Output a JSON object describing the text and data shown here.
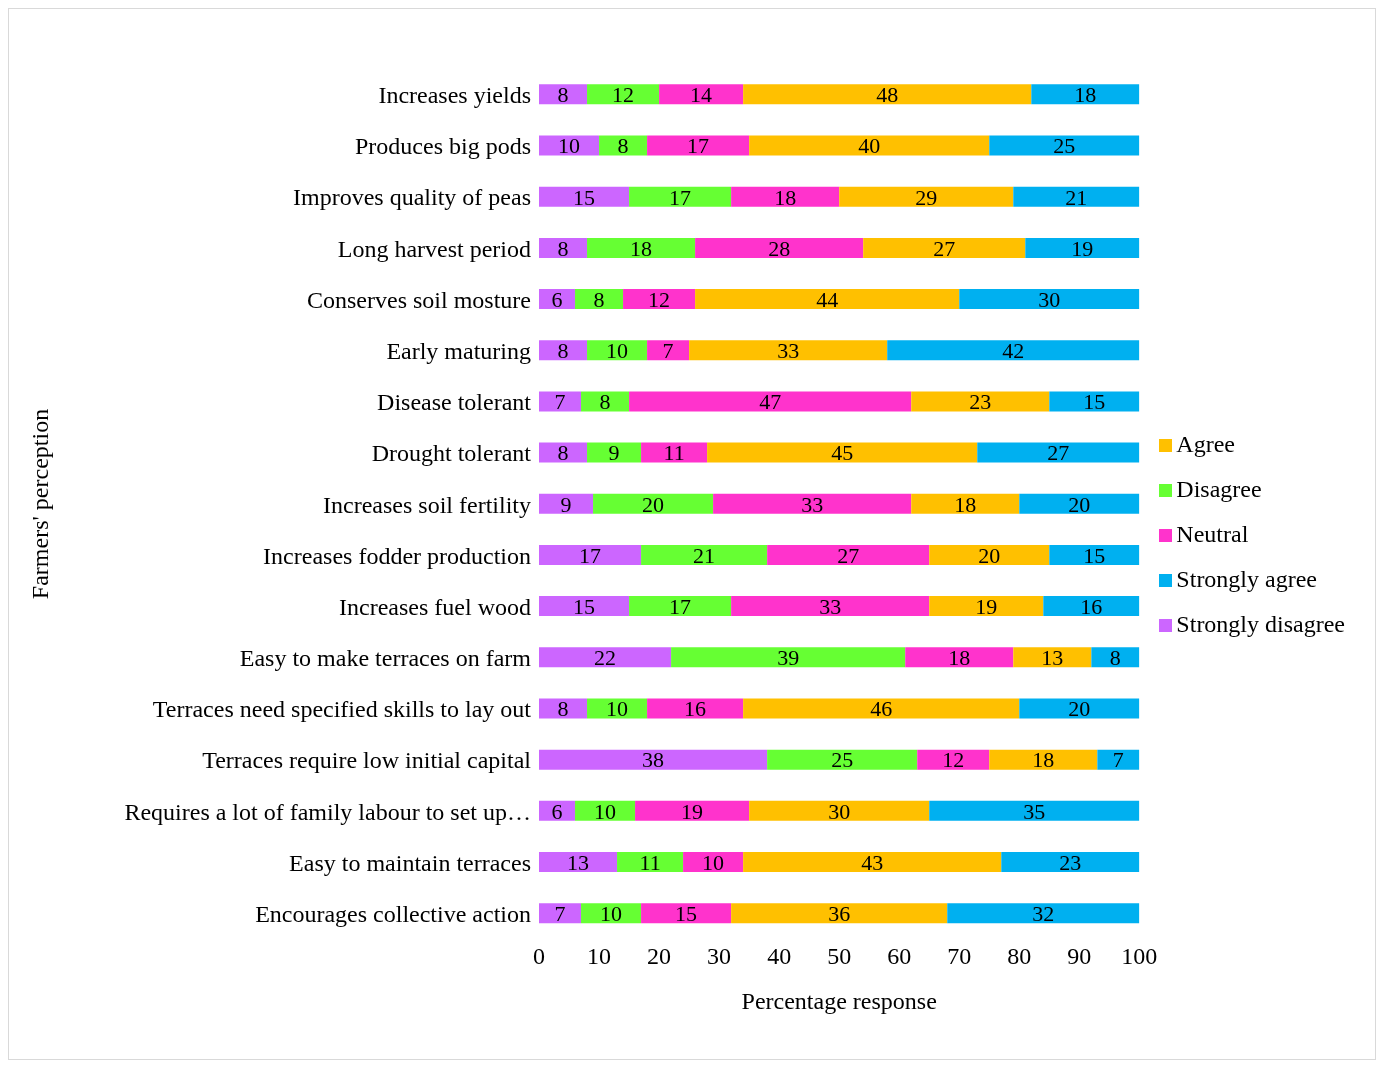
{
  "chart_data": {
    "type": "bar",
    "orientation": "horizontal",
    "stacked": true,
    "xlabel": "Percentage response",
    "ylabel": "Farmers' perception",
    "categories": [
      "Increases yields",
      "Produces big pods",
      "Improves quality of peas",
      "Long harvest period",
      "Conserves soil mosture",
      "Early maturing",
      "Disease tolerant",
      "Drought tolerant",
      "Increases soil fertility",
      "Increases fodder production",
      "Increases fuel wood",
      "Easy to make terraces on farm",
      "Terraces need specified skills to lay out",
      "Terraces require low initial capital",
      "Requires a lot of family labour to set up…",
      "Easy to maintain terraces",
      "Encourages collective action"
    ],
    "series": [
      {
        "name": "Strongly disagree",
        "color": "#cc66ff",
        "values": [
          8,
          10,
          15,
          8,
          6,
          8,
          7,
          8,
          9,
          17,
          15,
          22,
          8,
          38,
          6,
          13,
          7
        ]
      },
      {
        "name": "Disagree",
        "color": "#66ff33",
        "values": [
          12,
          8,
          17,
          18,
          8,
          10,
          8,
          9,
          20,
          21,
          17,
          39,
          10,
          25,
          10,
          11,
          10
        ]
      },
      {
        "name": "Neutral",
        "color": "#ff33cc",
        "values": [
          14,
          17,
          18,
          28,
          12,
          7,
          47,
          11,
          33,
          27,
          33,
          18,
          16,
          12,
          19,
          10,
          15
        ]
      },
      {
        "name": "Agree",
        "color": "#ffc000",
        "values": [
          48,
          40,
          29,
          27,
          44,
          33,
          23,
          45,
          18,
          20,
          19,
          13,
          46,
          18,
          30,
          43,
          36
        ]
      },
      {
        "name": "Strongly agree",
        "color": "#00b0f0",
        "values": [
          18,
          25,
          21,
          19,
          30,
          42,
          15,
          27,
          20,
          15,
          16,
          8,
          20,
          7,
          35,
          23,
          32
        ]
      }
    ],
    "xlim": [
      0,
      100
    ],
    "xticks": [
      0,
      10,
      20,
      30,
      40,
      50,
      60,
      70,
      80,
      90,
      100
    ],
    "data_labels": true,
    "grid": false,
    "legend": "right"
  }
}
